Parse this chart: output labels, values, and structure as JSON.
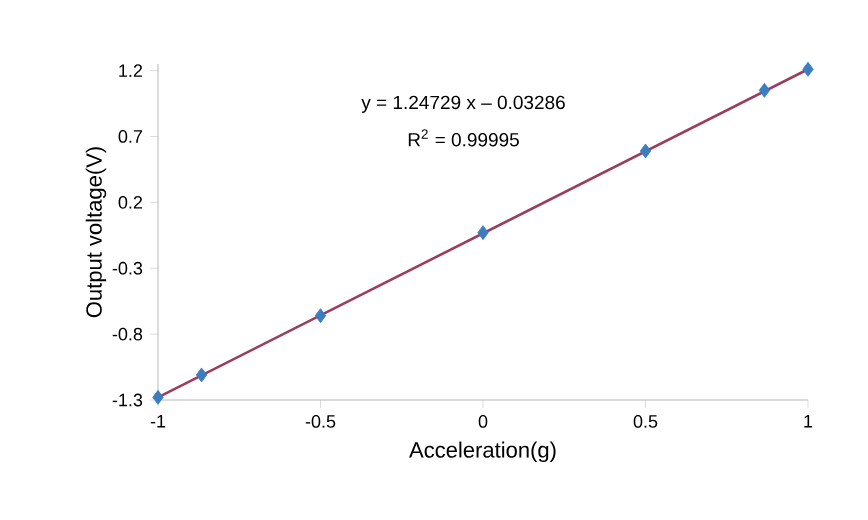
{
  "chart_data": {
    "type": "scatter",
    "xlabel": "Acceleration(g)",
    "ylabel": "Output voltage(V)",
    "xlim": [
      -1,
      1
    ],
    "xticks": [
      -1,
      -0.5,
      0,
      0.5,
      1
    ],
    "ylim": [
      -1.3,
      1.25
    ],
    "yticks": [
      -1.3,
      -0.8,
      -0.3,
      0.2,
      0.7,
      1.2
    ],
    "grid": false,
    "annotations": [
      "y = 1.24729 x – 0.03286",
      "R$^{2}$ = 0.99995"
    ],
    "series": [
      {
        "marker": "diamond",
        "color": "#3a7dc0",
        "x": [
          -1,
          -0.866,
          -0.5,
          0,
          0.5,
          0.866,
          1
        ],
        "values": [
          -1.28,
          -1.11,
          -0.66,
          -0.03,
          0.59,
          1.05,
          1.21
        ]
      },
      {
        "type": "line",
        "marker": "none",
        "line_style": "solid",
        "color": "#9a3d5e",
        "x": [
          -1,
          1
        ],
        "values": [
          -1.28,
          1.21
        ]
      }
    ]
  }
}
